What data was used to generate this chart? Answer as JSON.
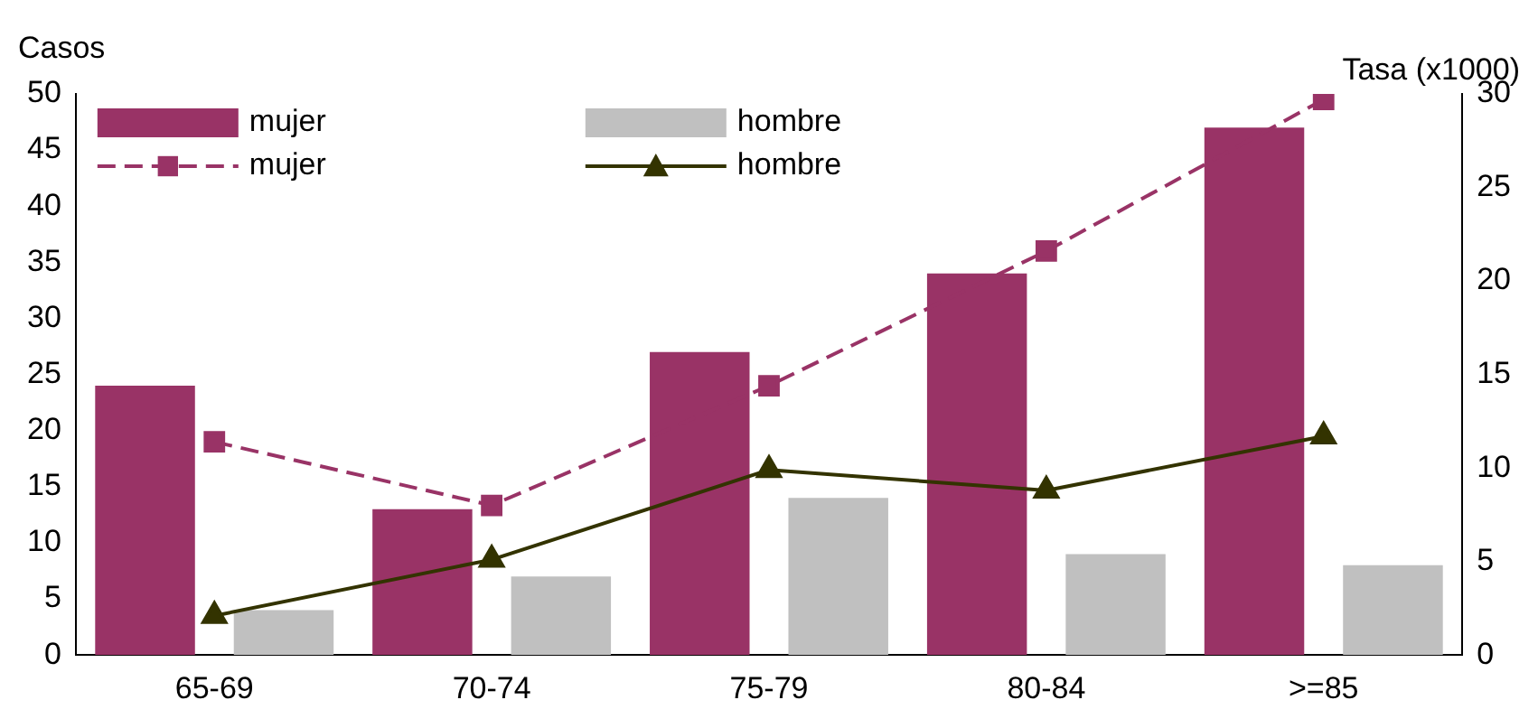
{
  "chart_data": {
    "type": "bar",
    "ylabel": "Casos",
    "y2label": "Tasa (x1000)",
    "categories": [
      "65-69",
      "70-74",
      "75-79",
      "80-84",
      ">=85"
    ],
    "series": [
      {
        "name": "mujer",
        "color": "#993366",
        "values": [
          24,
          13,
          27,
          34,
          47
        ]
      },
      {
        "name": "hombre",
        "color": "#c0c0c0",
        "values": [
          4,
          7,
          14,
          9,
          8
        ]
      },
      {
        "name": "mujer",
        "type": "line",
        "axis": "y2",
        "color": "#993366",
        "marker": "square",
        "line_style": "dashed",
        "values": [
          11.4,
          8,
          14.4,
          21.6,
          29.7
        ]
      },
      {
        "name": "hombre",
        "type": "line",
        "axis": "y2",
        "color": "#333300",
        "marker": "triangle",
        "line_style": "solid",
        "values": [
          2.1,
          5.1,
          9.9,
          8.8,
          11.7
        ]
      }
    ],
    "ylim": [
      0,
      50
    ],
    "yticks": [
      0,
      5,
      10,
      15,
      20,
      25,
      30,
      35,
      40,
      45,
      50
    ],
    "y2lim": [
      0,
      30
    ],
    "y2ticks": [
      0,
      5,
      10,
      15,
      20,
      25,
      30
    ],
    "grid": false,
    "legend": "top left"
  }
}
